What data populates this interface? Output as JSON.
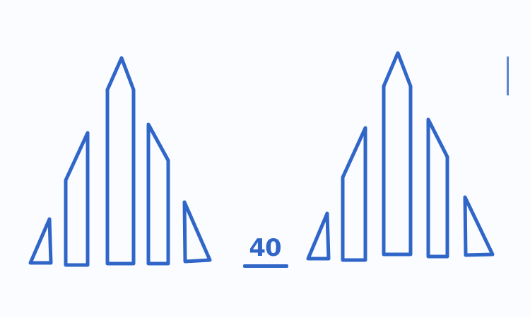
{
  "figure_number": "40",
  "colors": {
    "ink": "#2f66c8",
    "paper": "#fbfcff"
  },
  "groups": [
    {
      "name": "left-group",
      "icon_shapes": [
        "small-triangle",
        "tall-slanted-bar",
        "pointed-pillar",
        "right-slanted-bar",
        "small-right-triangle"
      ]
    },
    {
      "name": "right-group",
      "icon_shapes": [
        "small-triangle",
        "tall-slanted-bar",
        "pointed-pillar",
        "right-slanted-bar",
        "small-right-triangle"
      ]
    }
  ]
}
